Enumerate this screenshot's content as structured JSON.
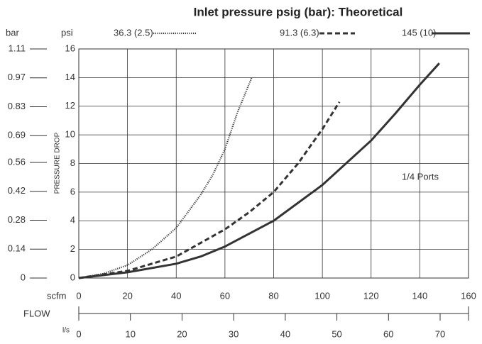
{
  "chart_data": {
    "type": "line",
    "title": "Inlet pressure psig (bar): Theoretical",
    "y_label": "PRESSURE DROP",
    "y_unit": "psi",
    "y2_unit": "bar",
    "x_unit": "scfm",
    "x_label": "FLOW",
    "x2_unit": "l/s",
    "annotation": "1/4 Ports",
    "xlim": [
      0,
      160
    ],
    "xticks": [
      0,
      20,
      40,
      60,
      80,
      100,
      120,
      140,
      160
    ],
    "x2lim": [
      0,
      75.5
    ],
    "x2ticks": [
      0,
      10,
      20,
      30,
      40,
      50,
      60,
      70
    ],
    "ylim": [
      0,
      16
    ],
    "yticks": [
      0,
      2,
      4,
      6,
      8,
      10,
      12,
      14,
      16
    ],
    "y2lim": [
      0,
      1.11
    ],
    "y2ticks": [
      0,
      0.14,
      0.28,
      0.42,
      0.56,
      0.69,
      0.83,
      0.97,
      1.11
    ],
    "grid": true,
    "series": [
      {
        "name": "36.3 (2.5)",
        "color": "#333333",
        "style": "dotted",
        "x": [
          0,
          10,
          20,
          30,
          40,
          50,
          55,
          60,
          65,
          71
        ],
        "values": [
          0,
          0.3,
          0.9,
          2,
          3.5,
          5.8,
          7.2,
          9,
          11.5,
          14
        ]
      },
      {
        "name": "91.3 (6.3)",
        "color": "#333333",
        "style": "dashed",
        "x": [
          0,
          20,
          40,
          60,
          70,
          80,
          90,
          100,
          107
        ],
        "values": [
          0,
          0.5,
          1.5,
          3.4,
          4.6,
          6,
          8,
          10.4,
          12.3
        ]
      },
      {
        "name": "145 (10)",
        "color": "#333333",
        "style": "solid",
        "x": [
          0,
          20,
          40,
          50,
          60,
          80,
          100,
          120,
          130,
          140,
          148
        ],
        "values": [
          0,
          0.4,
          1,
          1.5,
          2.2,
          4,
          6.5,
          9.6,
          11.5,
          13.5,
          15
        ]
      }
    ]
  }
}
